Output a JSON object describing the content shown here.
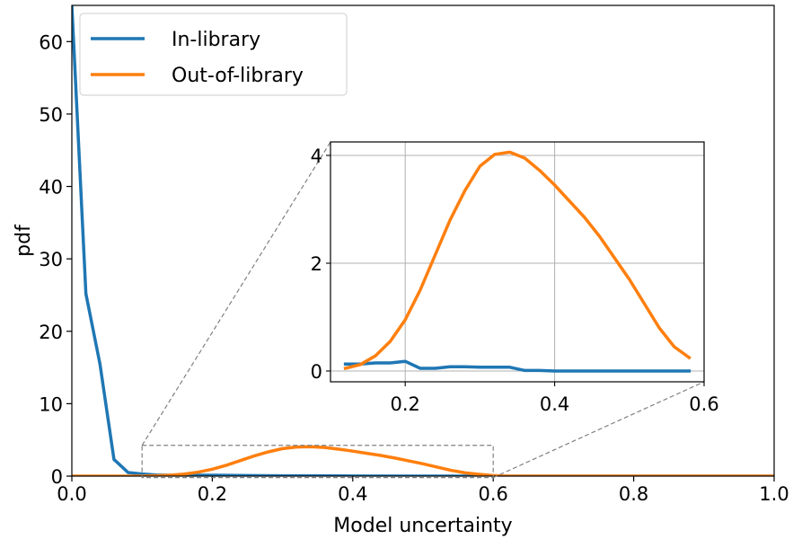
{
  "chart_data": [
    {
      "id": "main",
      "type": "line",
      "xlabel": "Model uncertainty",
      "ylabel": "pdf",
      "xlim": [
        0.0,
        1.0
      ],
      "ylim": [
        0,
        65
      ],
      "xticks": [
        0.0,
        0.2,
        0.4,
        0.6,
        0.8,
        1.0
      ],
      "xtick_labels": [
        "0.0",
        "0.2",
        "0.4",
        "0.6",
        "0.8",
        "1.0"
      ],
      "yticks": [
        0,
        10,
        20,
        30,
        40,
        50,
        60
      ],
      "ytick_labels": [
        "0",
        "10",
        "20",
        "30",
        "40",
        "50",
        "60"
      ],
      "grid": false,
      "legend_position": "top-left",
      "series": [
        {
          "name": "In-library",
          "color": "#1f77b4",
          "x": [
            0.0,
            0.02,
            0.04,
            0.06,
            0.08,
            0.1,
            0.12,
            0.14,
            0.16,
            0.18,
            0.2,
            0.25,
            0.3,
            0.35,
            0.4,
            0.5,
            0.6,
            0.7,
            0.8,
            0.9,
            1.0
          ],
          "y": [
            65.0,
            25.2,
            15.5,
            2.3,
            0.5,
            0.3,
            0.15,
            0.12,
            0.12,
            0.12,
            0.12,
            0.08,
            0.05,
            0.04,
            0.02,
            0.0,
            0.0,
            0.0,
            0.0,
            0.0,
            0.0
          ]
        },
        {
          "name": "Out-of-library",
          "color": "#ff7f0e",
          "x": [
            0.0,
            0.1,
            0.12,
            0.14,
            0.16,
            0.18,
            0.2,
            0.22,
            0.24,
            0.26,
            0.28,
            0.3,
            0.32,
            0.34,
            0.36,
            0.38,
            0.4,
            0.42,
            0.44,
            0.46,
            0.48,
            0.5,
            0.52,
            0.54,
            0.56,
            0.58,
            0.6,
            0.62,
            0.7,
            0.8,
            0.9,
            1.0
          ],
          "y": [
            0.0,
            0.0,
            0.05,
            0.12,
            0.28,
            0.55,
            0.95,
            1.5,
            2.15,
            2.8,
            3.35,
            3.8,
            4.02,
            4.06,
            3.95,
            3.72,
            3.45,
            3.15,
            2.85,
            2.5,
            2.1,
            1.7,
            1.25,
            0.8,
            0.45,
            0.25,
            0.08,
            0.0,
            0.0,
            0.0,
            0.0,
            0.0
          ]
        }
      ]
    },
    {
      "id": "inset",
      "type": "line",
      "xlim": [
        0.1,
        0.6
      ],
      "ylim": [
        -0.2,
        4.25
      ],
      "xticks": [
        0.2,
        0.4,
        0.6
      ],
      "xtick_labels": [
        "0.2",
        "0.4",
        "0.6"
      ],
      "yticks": [
        0,
        2,
        4
      ],
      "ytick_labels": [
        "0",
        "2",
        "4"
      ],
      "grid": true,
      "series": [
        {
          "name": "In-library",
          "color": "#1f77b4",
          "x": [
            0.12,
            0.14,
            0.16,
            0.18,
            0.2,
            0.22,
            0.24,
            0.26,
            0.28,
            0.3,
            0.32,
            0.34,
            0.36,
            0.38,
            0.4,
            0.42,
            0.44,
            0.46,
            0.48,
            0.5,
            0.52,
            0.54,
            0.56,
            0.58
          ],
          "y": [
            0.13,
            0.13,
            0.15,
            0.15,
            0.18,
            0.05,
            0.05,
            0.08,
            0.08,
            0.07,
            0.07,
            0.07,
            0.01,
            0.01,
            0.0,
            0.0,
            0.0,
            0.0,
            0.0,
            0.0,
            0.0,
            0.0,
            0.0,
            0.0
          ]
        },
        {
          "name": "Out-of-library",
          "color": "#ff7f0e",
          "x": [
            0.12,
            0.14,
            0.16,
            0.18,
            0.2,
            0.22,
            0.24,
            0.26,
            0.28,
            0.3,
            0.32,
            0.34,
            0.36,
            0.38,
            0.4,
            0.42,
            0.44,
            0.46,
            0.48,
            0.5,
            0.52,
            0.54,
            0.56,
            0.58
          ],
          "y": [
            0.05,
            0.12,
            0.28,
            0.55,
            0.95,
            1.5,
            2.15,
            2.8,
            3.35,
            3.8,
            4.02,
            4.06,
            3.95,
            3.72,
            3.45,
            3.15,
            2.85,
            2.5,
            2.1,
            1.7,
            1.25,
            0.8,
            0.45,
            0.25
          ]
        }
      ]
    }
  ]
}
